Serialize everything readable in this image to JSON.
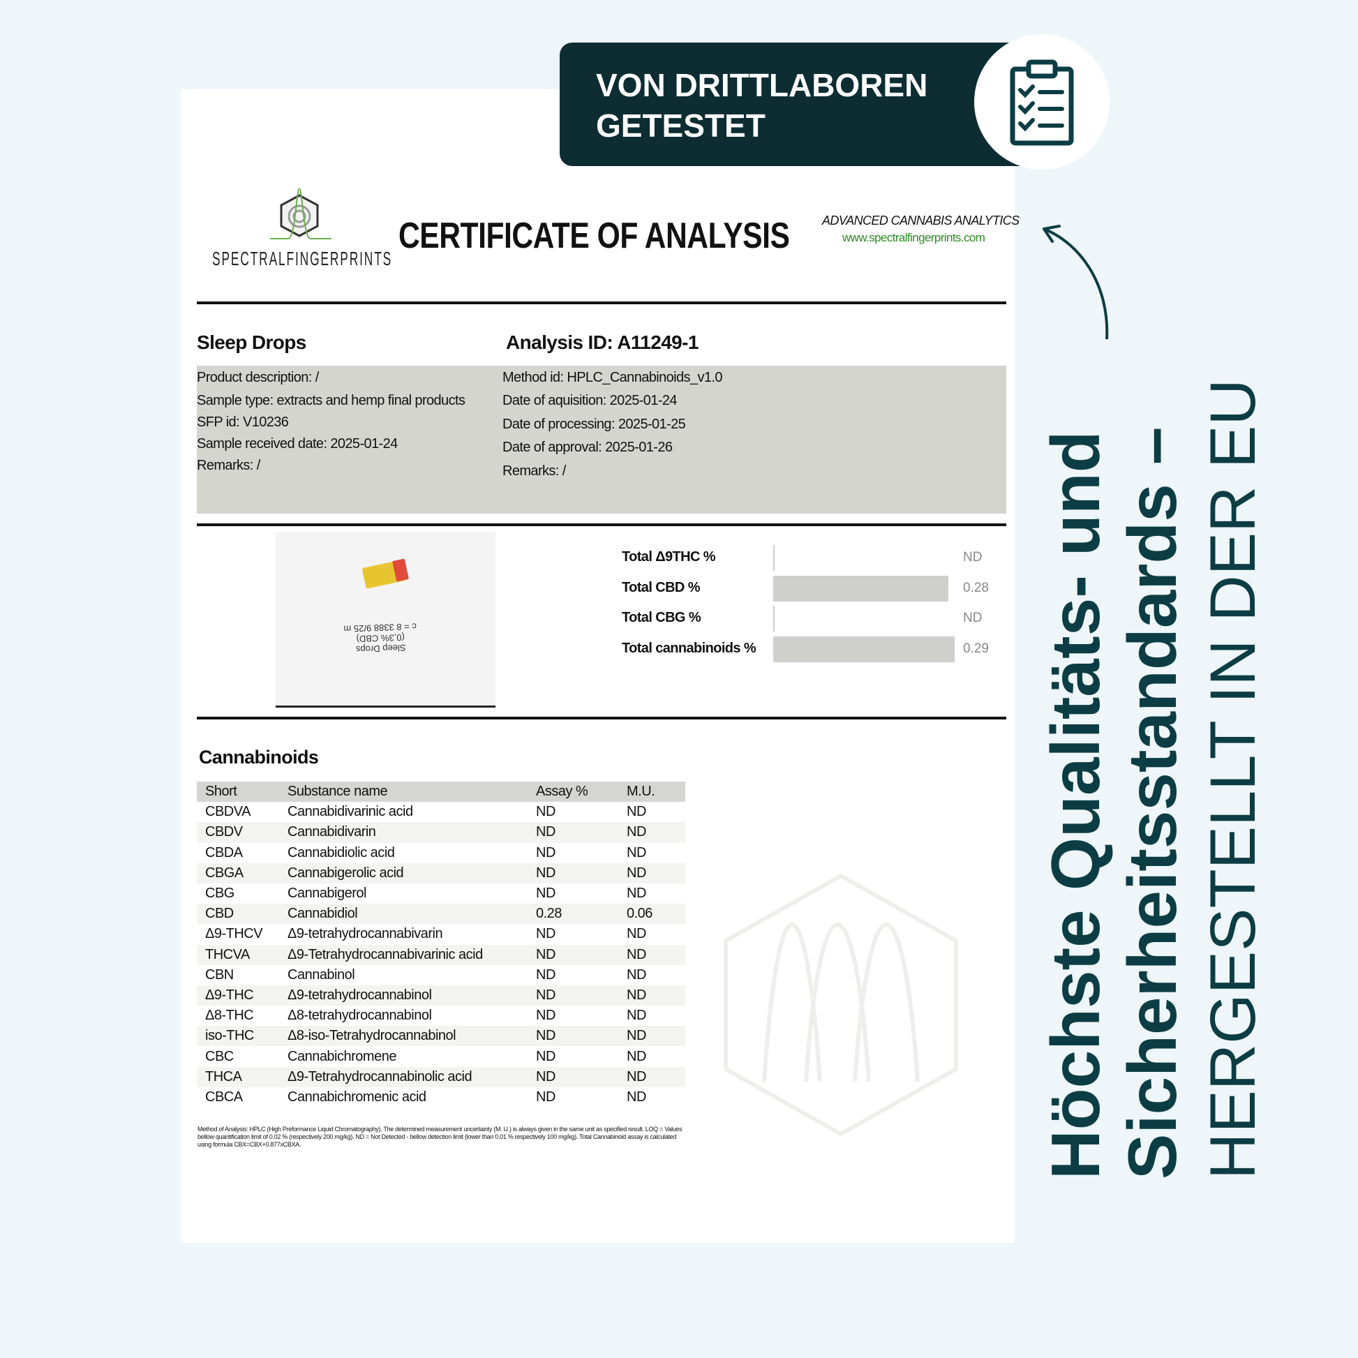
{
  "badge": {
    "line1": "VON DRITTLABOREN",
    "line2": "GETESTET",
    "icon": "clipboard-check-icon"
  },
  "side": {
    "line1": "Höchste Qualitäts- und",
    "line2": "Sicherheitsstandards –",
    "line3": "HERGESTELLT IN DER EU"
  },
  "colors": {
    "brand_dark": "#0d2d33",
    "background": "#eef6f9",
    "logo_green": "#6ab04c"
  },
  "certificate": {
    "logo_text": "SPECTRALFINGERPRINTS",
    "title": "CERTIFICATE OF ANALYSIS",
    "tagline": "ADVANCED CANNABIS ANALYTICS",
    "website": "www.spectralfingerprints.com",
    "product": "Sleep Drops",
    "analysis_id": "Analysis ID: A11249-1",
    "left_meta": [
      "Product description: /",
      "Sample type: extracts and hemp final products",
      "SFP id: V10236",
      "Sample received date: 2025-01-24",
      "Remarks: /"
    ],
    "right_meta": [
      "Method id: HPLC_Cannabinoids_v1.0",
      "Date of aquisition: 2025-01-24",
      "Date of processing: 2025-01-25",
      "Date of approval: 2025-01-26",
      "Remarks: /"
    ],
    "photo_label": [
      "Sleep Drops",
      "(0,3% CBD)",
      "c = 8 3388 9/25 m"
    ],
    "totals": [
      {
        "label": "Total Δ9THC %",
        "value": "ND",
        "fraction": 0
      },
      {
        "label": "Total CBD %",
        "value": "0.28",
        "fraction": 0.28
      },
      {
        "label": "Total CBG %",
        "value": "ND",
        "fraction": 0
      },
      {
        "label": "Total cannabinoids %",
        "value": "0.29",
        "fraction": 0.29
      }
    ],
    "section": "Cannabinoids",
    "columns": [
      "Short",
      "Substance name",
      "Assay %",
      "M.U."
    ],
    "rows": [
      [
        "CBDVA",
        "Cannabidivarinic acid",
        "ND",
        "ND"
      ],
      [
        "CBDV",
        "Cannabidivarin",
        "ND",
        "ND"
      ],
      [
        "CBDA",
        "Cannabidiolic acid",
        "ND",
        "ND"
      ],
      [
        "CBGA",
        "Cannabigerolic acid",
        "ND",
        "ND"
      ],
      [
        "CBG",
        "Cannabigerol",
        "ND",
        "ND"
      ],
      [
        "CBD",
        "Cannabidiol",
        "0.28",
        "0.06"
      ],
      [
        "Δ9-THCV",
        "Δ9-tetrahydrocannabivarin",
        "ND",
        "ND"
      ],
      [
        "THCVA",
        "Δ9-Tetrahydrocannabivarinic acid",
        "ND",
        "ND"
      ],
      [
        "CBN",
        "Cannabinol",
        "ND",
        "ND"
      ],
      [
        "Δ9-THC",
        "Δ9-tetrahydrocannabinol",
        "ND",
        "ND"
      ],
      [
        "Δ8-THC",
        "Δ8-tetrahydrocannabinol",
        "ND",
        "ND"
      ],
      [
        "iso-THC",
        "Δ8-iso-Tetrahydrocannabinol",
        "ND",
        "ND"
      ],
      [
        "CBC",
        "Cannabichromene",
        "ND",
        "ND"
      ],
      [
        "THCA",
        "Δ9-Tetrahydrocannabinolic acid",
        "ND",
        "ND"
      ],
      [
        "CBCA",
        "Cannabichromenic acid",
        "ND",
        "ND"
      ]
    ],
    "footnote": "Method of Analysis: HPLC (High Preformance Liquid Chromatography). The determined measurement uncertainty (M. U.) is always given in the same unit as specified result. LOQ = Values bellow quantification limit of 0.02 % (respectively 200 mg/kg). ND = Not Detected - bellow detection limit (lower than 0.01 % respectively 100 mg/kg). Total Cannabinoid assay is calculated using formula CBX=CBX+0.877xCBXA."
  }
}
